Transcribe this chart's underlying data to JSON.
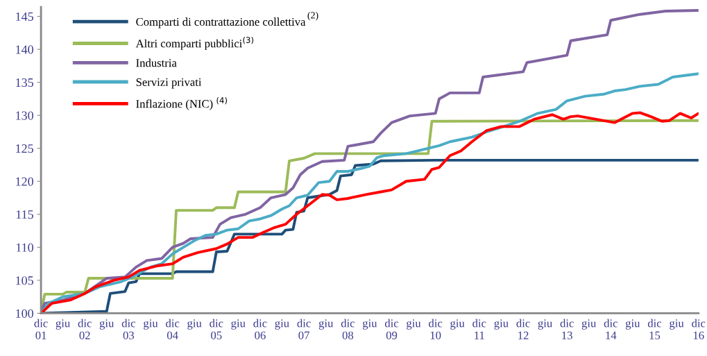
{
  "chart_data": {
    "type": "line",
    "xlim": [
      "2001-12",
      "2016-12"
    ],
    "ylim": [
      100,
      146.4
    ],
    "yticks": [
      100,
      105,
      110,
      115,
      120,
      125,
      130,
      135,
      140,
      145
    ],
    "xticks": [
      {
        "value": "2001-12",
        "label": "dic\n01"
      },
      {
        "value": "2002-06",
        "label": "giu"
      },
      {
        "value": "2002-12",
        "label": "dic\n02"
      },
      {
        "value": "2003-06",
        "label": "giu"
      },
      {
        "value": "2003-12",
        "label": "dic\n03"
      },
      {
        "value": "2004-06",
        "label": "giu"
      },
      {
        "value": "2004-12",
        "label": "dic\n04"
      },
      {
        "value": "2005-06",
        "label": "giu"
      },
      {
        "value": "2005-12",
        "label": "dic\n05"
      },
      {
        "value": "2006-06",
        "label": "giu"
      },
      {
        "value": "2006-12",
        "label": "dic\n06"
      },
      {
        "value": "2007-06",
        "label": "giu"
      },
      {
        "value": "2007-12",
        "label": "dic\n07"
      },
      {
        "value": "2008-06",
        "label": "giu"
      },
      {
        "value": "2008-12",
        "label": "dic\n08"
      },
      {
        "value": "2009-06",
        "label": "giu"
      },
      {
        "value": "2009-12",
        "label": "dic\n09"
      },
      {
        "value": "2010-06",
        "label": "giu"
      },
      {
        "value": "2010-12",
        "label": "dic\n10"
      },
      {
        "value": "2011-06",
        "label": "giu"
      },
      {
        "value": "2011-12",
        "label": "dic\n11"
      },
      {
        "value": "2012-06",
        "label": "giu"
      },
      {
        "value": "2012-12",
        "label": "dic\n12"
      },
      {
        "value": "2013-06",
        "label": "giu"
      },
      {
        "value": "2013-12",
        "label": "dic\n13"
      },
      {
        "value": "2014-06",
        "label": "giu"
      },
      {
        "value": "2014-12",
        "label": "dic\n14"
      },
      {
        "value": "2015-06",
        "label": "giu"
      },
      {
        "value": "2015-12",
        "label": "dic\n15"
      },
      {
        "value": "2016-06",
        "label": "giu"
      },
      {
        "value": "2016-12",
        "label": "dic\n16"
      }
    ],
    "grid": false,
    "legend": "top left",
    "marker": "none",
    "line_style": "solid",
    "annotations": [
      "(2)"
    ],
    "series": [
      {
        "name": "Comparti di contrattazione collettiva",
        "color": "#1f4e79",
        "x": [
          "2001-12",
          "2003-06",
          "2003-07",
          "2003-11",
          "2003-12",
          "2004-02",
          "2004-03",
          "2004-12",
          "2005-01",
          "2005-11",
          "2005-12",
          "2006-03",
          "2006-05",
          "2007-06",
          "2007-07",
          "2007-09",
          "2007-10",
          "2007-12",
          "2008-01",
          "2008-07",
          "2008-09",
          "2008-10",
          "2009-01",
          "2009-02",
          "2009-07",
          "2009-09",
          "2010-12",
          "2016-12"
        ],
        "values": [
          100,
          100.3,
          103,
          103.3,
          104.6,
          104.8,
          106,
          106,
          106.3,
          106.3,
          109.3,
          109.4,
          112,
          112,
          112.6,
          112.7,
          115.3,
          115.5,
          117.5,
          118,
          118.6,
          120.8,
          121,
          122.4,
          122.6,
          123.1,
          123.2,
          123.2
        ]
      },
      {
        "name": "Altri comparti pubblici$^{(3)}$",
        "color": "#9bbb59",
        "x": [
          "2001-12",
          "2002-01",
          "2002-06",
          "2002-07",
          "2002-12",
          "2003-01",
          "2004-12",
          "2005-01",
          "2005-11",
          "2005-12",
          "2006-05",
          "2006-06",
          "2007-07",
          "2007-08",
          "2007-12",
          "2008-03",
          "2010-10",
          "2010-11",
          "2016-12"
        ],
        "values": [
          100,
          102.9,
          102.9,
          103.2,
          103.2,
          105.3,
          105.3,
          115.6,
          115.6,
          116,
          116,
          118.4,
          118.4,
          123.1,
          123.5,
          124.2,
          124.2,
          129.1,
          129.2
        ]
      },
      {
        "name": "Industria",
        "color": "#8064a2",
        "x": [
          "2001-12",
          "2002-01",
          "2002-06",
          "2002-12",
          "2003-06",
          "2003-11",
          "2004-02",
          "2004-05",
          "2004-09",
          "2004-12",
          "2005-03",
          "2005-05",
          "2005-11",
          "2006-01",
          "2006-04",
          "2006-08",
          "2006-12",
          "2007-03",
          "2007-07",
          "2007-09",
          "2007-11",
          "2008-01",
          "2008-05",
          "2008-11",
          "2008-12",
          "2009-07",
          "2009-09",
          "2009-12",
          "2010-05",
          "2010-12",
          "2011-01",
          "2011-04",
          "2011-12",
          "2012-01",
          "2012-12",
          "2013-01",
          "2013-12",
          "2014-01",
          "2014-11",
          "2014-12",
          "2015-08",
          "2016-03",
          "2016-12"
        ],
        "values": [
          100,
          101.5,
          102,
          103,
          105.3,
          105.5,
          107,
          108,
          108.3,
          110,
          110.6,
          111.3,
          111.5,
          113.5,
          114.5,
          115,
          116,
          117.5,
          118,
          119,
          121,
          122,
          123,
          123.2,
          125.3,
          126,
          127.3,
          128.9,
          129.9,
          130.3,
          132.5,
          133.4,
          133.4,
          135.8,
          136.6,
          138,
          139.1,
          141.3,
          142.2,
          144.4,
          145.3,
          145.8,
          145.9
        ]
      },
      {
        "name": "Servizi privati",
        "color": "#4bacc6",
        "x": [
          "2001-12",
          "2002-02",
          "2002-06",
          "2002-12",
          "2003-04",
          "2003-10",
          "2004-01",
          "2004-06",
          "2004-09",
          "2004-12",
          "2005-03",
          "2005-06",
          "2005-09",
          "2005-12",
          "2006-03",
          "2006-06",
          "2006-09",
          "2006-12",
          "2007-03",
          "2007-06",
          "2007-08",
          "2007-10",
          "2008-01",
          "2008-04",
          "2008-07",
          "2008-09",
          "2008-12",
          "2009-04",
          "2009-06",
          "2009-08",
          "2009-10",
          "2010-04",
          "2010-07",
          "2011-01",
          "2011-04",
          "2011-10",
          "2012-02",
          "2012-06",
          "2012-11",
          "2013-04",
          "2013-09",
          "2013-12",
          "2014-05",
          "2014-10",
          "2015-01",
          "2015-04",
          "2015-08",
          "2016-01",
          "2016-05",
          "2016-12"
        ],
        "values": [
          100,
          101.5,
          102.5,
          103,
          104,
          104.8,
          105.5,
          107,
          107.5,
          109,
          110,
          111,
          111.8,
          112,
          112.6,
          112.8,
          114,
          114.3,
          114.8,
          115.8,
          116.3,
          117.5,
          117.9,
          119.8,
          120,
          121.5,
          121.5,
          122,
          122.3,
          123.6,
          123.9,
          124.2,
          124.6,
          125.4,
          126,
          126.7,
          127.5,
          128.2,
          129.1,
          130.3,
          130.9,
          132.2,
          132.9,
          133.2,
          133.7,
          133.9,
          134.4,
          134.7,
          135.8,
          136.3
        ]
      },
      {
        "name": "Inflazione (NIC) $^{(4)}$",
        "color": "#ff0000",
        "x": [
          "2001-12",
          "2002-03",
          "2002-08",
          "2002-12",
          "2003-03",
          "2003-08",
          "2003-12",
          "2004-03",
          "2004-08",
          "2004-12",
          "2005-03",
          "2005-07",
          "2005-12",
          "2006-03",
          "2006-06",
          "2006-10",
          "2007-01",
          "2007-04",
          "2007-07",
          "2007-10",
          "2008-01",
          "2008-05",
          "2008-07",
          "2008-09",
          "2008-12",
          "2009-05",
          "2009-09",
          "2009-12",
          "2010-04",
          "2010-09",
          "2010-11",
          "2011-01",
          "2011-04",
          "2011-07",
          "2011-10",
          "2012-02",
          "2012-06",
          "2012-11",
          "2013-03",
          "2013-08",
          "2013-11",
          "2014-01",
          "2014-03",
          "2014-08",
          "2015-01",
          "2015-06",
          "2015-08",
          "2015-11",
          "2016-02",
          "2016-04",
          "2016-07",
          "2016-10",
          "2016-12"
        ],
        "values": [
          100,
          101.5,
          102,
          103,
          104,
          105,
          105.5,
          106.5,
          107.2,
          107.5,
          108.5,
          109.2,
          109.8,
          110.5,
          111.5,
          111.5,
          112.3,
          113,
          113.5,
          115,
          116.3,
          118,
          117.9,
          117.2,
          117.4,
          118,
          118.4,
          118.7,
          120,
          120.3,
          121.8,
          122.1,
          123.9,
          124.6,
          126,
          127.7,
          128.3,
          128.3,
          129.4,
          130.1,
          129.4,
          129.8,
          129.9,
          129.4,
          128.9,
          130.3,
          130.4,
          129.8,
          129.1,
          129.2,
          130.3,
          129.6,
          130.3
        ]
      }
    ]
  }
}
